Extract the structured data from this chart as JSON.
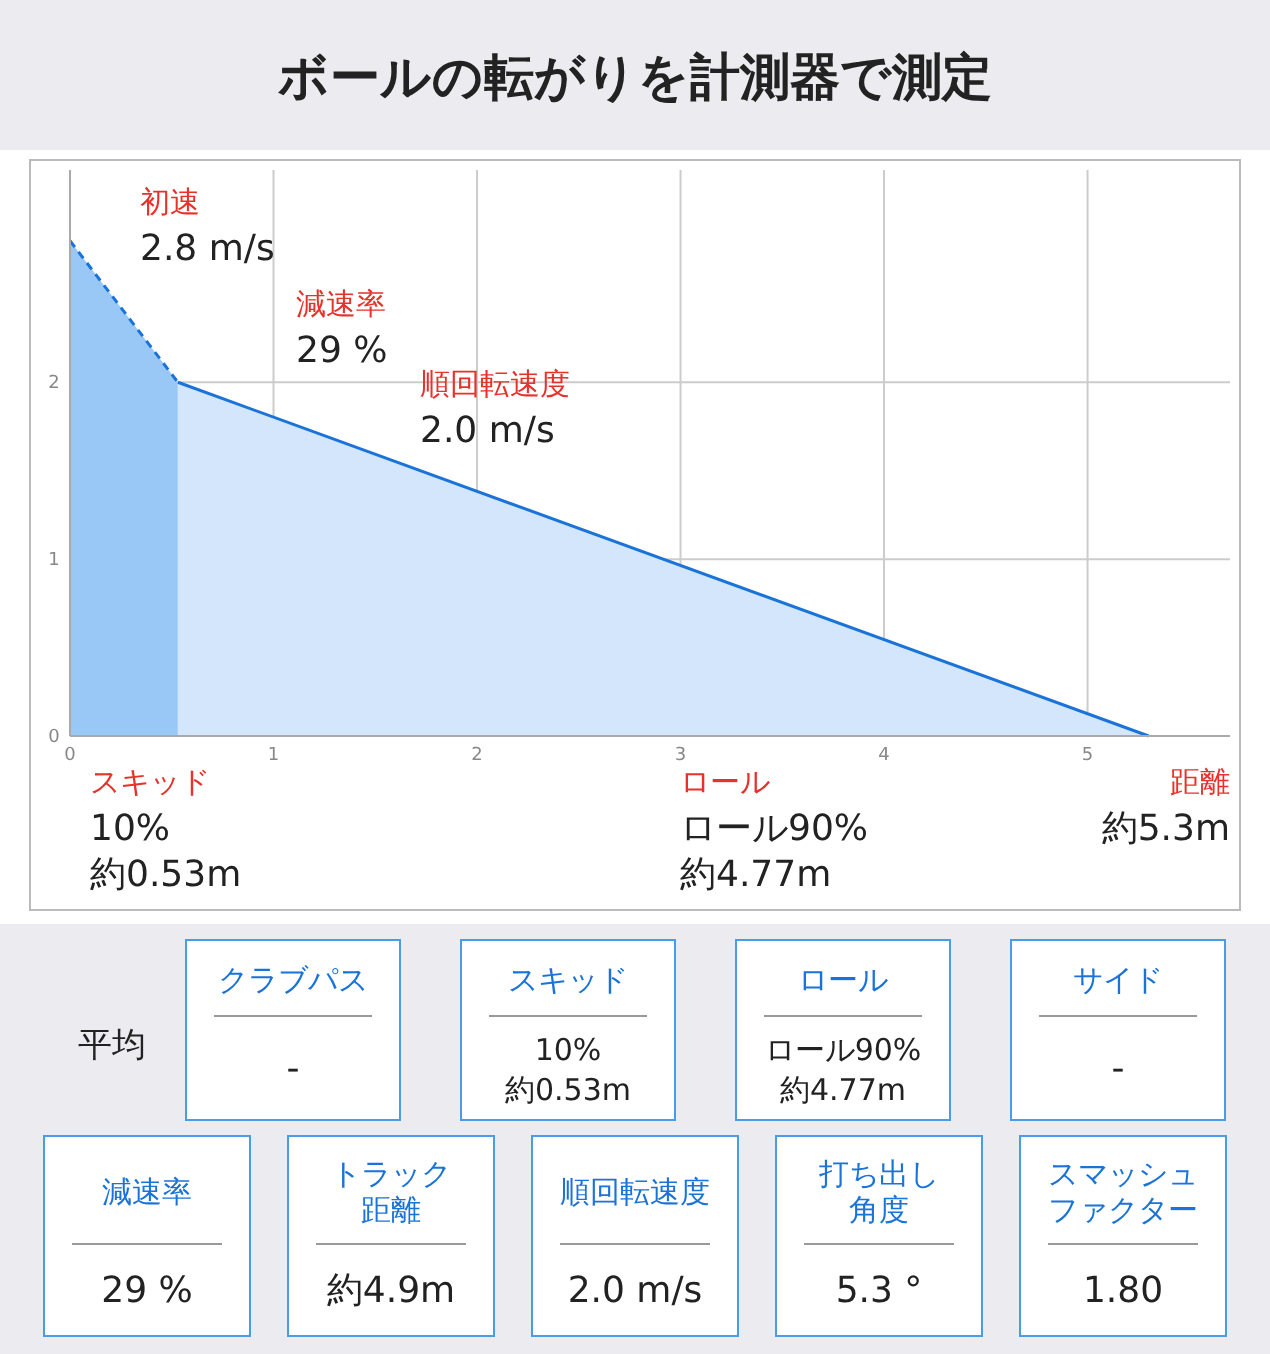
{
  "chart_data": [
    {
      "type": "area",
      "title": "ボールの転がりを計測器で測定",
      "xlim": [
        0,
        5.7
      ],
      "ylim": [
        0,
        3.2
      ],
      "xticks": [
        0,
        1,
        2,
        3,
        4,
        5
      ],
      "yticks": [
        0,
        1,
        2
      ],
      "grid": true,
      "series": [
        {
          "type": "area",
          "x": [
            0,
            0.53
          ],
          "values": [
            2.8,
            2.0
          ],
          "color": "#99c8f7",
          "line_style": "dashed"
        },
        {
          "type": "area",
          "x": [
            0.53,
            5.3
          ],
          "values": [
            2.0,
            0
          ],
          "color": "#d3e6fc",
          "line_style": "solid"
        }
      ],
      "annotations": [
        "初速",
        "2.8 m/s",
        "減速率",
        "29 %",
        "順回転速度",
        "2.0 m/s",
        "スキッド",
        "10%\n約0.53m",
        "ロール",
        "ロール90%\n約4.77m",
        "距離",
        "約5.3m"
      ]
    },
    {
      "type": "other",
      "title": "平均",
      "annotations": [
        "クラブパス",
        "-",
        "スキッド",
        "10%\n約0.53m",
        "ロール",
        "ロール90%\n約4.77m",
        "サイド",
        "-",
        "減速率",
        "29 %",
        "トラック距離",
        "約4.9m",
        "順回転速度",
        "2.0 m/s",
        "打ち出し角度",
        "5.3 °",
        "スマッシュファクター",
        "1.80"
      ]
    }
  ]
}
